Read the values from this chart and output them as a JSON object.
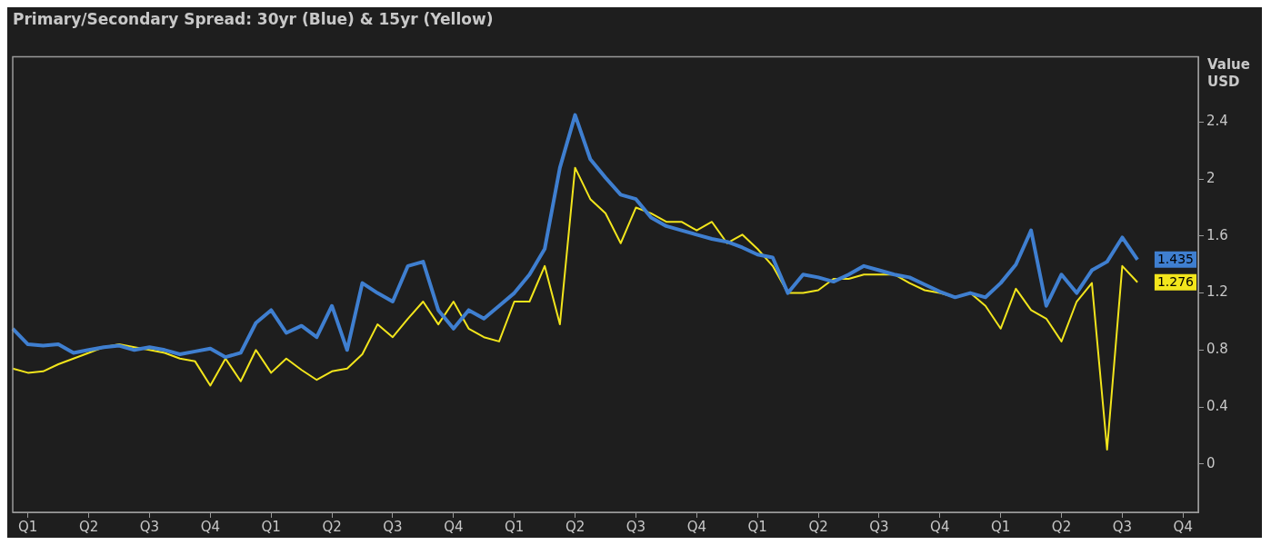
{
  "chart_data": {
    "type": "line",
    "title": "Primary/Secondary Spread: 30yr (Blue) & 15yr (Yellow)",
    "ylabel": "Value USD",
    "categories": [
      null,
      "Q1",
      null,
      null,
      null,
      "Q2",
      null,
      null,
      null,
      "Q3",
      null,
      null,
      null,
      "Q4",
      null,
      null,
      null,
      "Q1",
      null,
      null,
      null,
      "Q2",
      null,
      null,
      null,
      "Q3",
      null,
      null,
      null,
      "Q4",
      null,
      null,
      null,
      "Q1",
      null,
      null,
      null,
      "Q2",
      null,
      null,
      null,
      "Q3",
      null,
      null,
      null,
      "Q4",
      null,
      null,
      null,
      "Q1",
      null,
      null,
      null,
      "Q2",
      null,
      null,
      null,
      "Q3",
      null,
      null,
      null,
      "Q4",
      null,
      null,
      null,
      "Q1",
      null,
      null,
      null,
      "Q2",
      null,
      null,
      null,
      "Q3",
      null,
      null,
      null,
      "Q4",
      null
    ],
    "ylim": [
      -0.34,
      2.86
    ],
    "yticks": [
      0,
      0.4,
      0.8,
      1.2,
      1.6,
      2,
      2.4
    ],
    "grid": false,
    "legend": false,
    "marker": "none",
    "line_style": "solid",
    "series": [
      {
        "color": "#3f7fd0",
        "values": [
          0.95,
          0.84,
          0.83,
          0.84,
          0.78,
          0.8,
          0.82,
          0.83,
          0.8,
          0.82,
          0.8,
          0.77,
          0.79,
          0.81,
          0.75,
          0.78,
          0.99,
          1.08,
          0.92,
          0.97,
          0.89,
          1.11,
          0.8,
          1.27,
          1.2,
          1.14,
          1.39,
          1.42,
          1.08,
          0.95,
          1.08,
          1.02,
          1.11,
          1.2,
          1.33,
          1.51,
          2.08,
          2.45,
          2.14,
          2.01,
          1.89,
          1.86,
          1.73,
          1.67,
          1.64,
          1.61,
          1.58,
          1.56,
          1.52,
          1.47,
          1.45,
          1.2,
          1.33,
          1.31,
          1.28,
          1.33,
          1.39,
          1.36,
          1.33,
          1.31,
          1.26,
          1.21,
          1.17,
          1.2,
          1.17,
          1.27,
          1.4,
          1.64,
          1.11,
          1.33,
          1.2,
          1.36,
          1.42,
          1.59,
          1.435,
          null,
          null,
          null,
          null
        ]
      },
      {
        "color": "#f2e51c",
        "values": [
          0.67,
          0.64,
          0.65,
          0.7,
          0.74,
          0.78,
          0.82,
          0.84,
          0.82,
          0.8,
          0.78,
          0.74,
          0.72,
          0.55,
          0.74,
          0.58,
          0.8,
          0.64,
          0.74,
          0.66,
          0.59,
          0.65,
          0.67,
          0.77,
          0.98,
          0.89,
          1.02,
          1.14,
          0.98,
          1.14,
          0.95,
          0.89,
          0.86,
          1.14,
          1.14,
          1.39,
          0.98,
          2.08,
          1.86,
          1.76,
          1.55,
          1.8,
          1.76,
          1.7,
          1.7,
          1.64,
          1.7,
          1.55,
          1.61,
          1.51,
          1.39,
          1.2,
          1.2,
          1.22,
          1.3,
          1.3,
          1.33,
          1.33,
          1.33,
          1.27,
          1.22,
          1.2,
          1.17,
          1.2,
          1.11,
          0.95,
          1.23,
          1.08,
          1.02,
          0.86,
          1.14,
          1.27,
          0.1,
          1.39,
          1.276,
          null,
          null,
          null,
          null
        ]
      }
    ],
    "annotations": [
      "1.435",
      "1.276"
    ]
  }
}
